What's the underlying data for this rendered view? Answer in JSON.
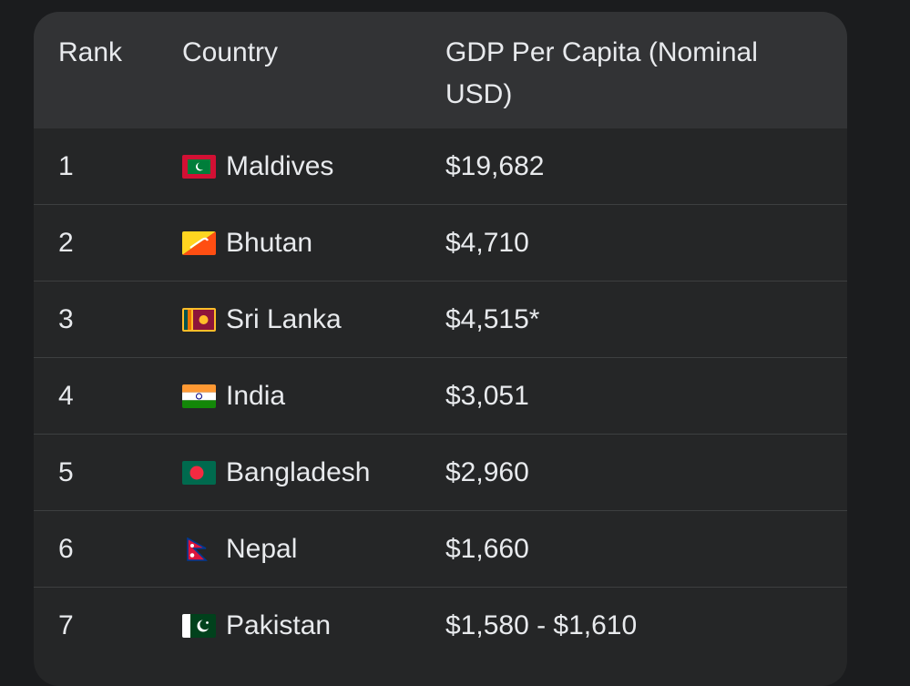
{
  "table": {
    "headers": {
      "rank": "Rank",
      "country": "Country",
      "gdp": "GDP Per Capita (Nominal USD)"
    },
    "rows": [
      {
        "rank": "1",
        "country": "Maldives",
        "flag": "maldives-flag-icon",
        "gdp": "$19,682"
      },
      {
        "rank": "2",
        "country": "Bhutan",
        "flag": "bhutan-flag-icon",
        "gdp": "$4,710"
      },
      {
        "rank": "3",
        "country": "Sri Lanka",
        "flag": "sri-lanka-flag-icon",
        "gdp": "$4,515*"
      },
      {
        "rank": "4",
        "country": "India",
        "flag": "india-flag-icon",
        "gdp": "$3,051"
      },
      {
        "rank": "5",
        "country": "Bangladesh",
        "flag": "bangladesh-flag-icon",
        "gdp": "$2,960"
      },
      {
        "rank": "6",
        "country": "Nepal",
        "flag": "nepal-flag-icon",
        "gdp": "$1,660"
      },
      {
        "rank": "7",
        "country": "Pakistan",
        "flag": "pakistan-flag-icon",
        "gdp": "$1,580 - $1,610"
      }
    ]
  },
  "colors": {
    "page_background": "#1b1c1e",
    "header_background": "#323335",
    "row_background": "#252627",
    "text": "#e8eaed",
    "divider": "#3d3f40"
  }
}
